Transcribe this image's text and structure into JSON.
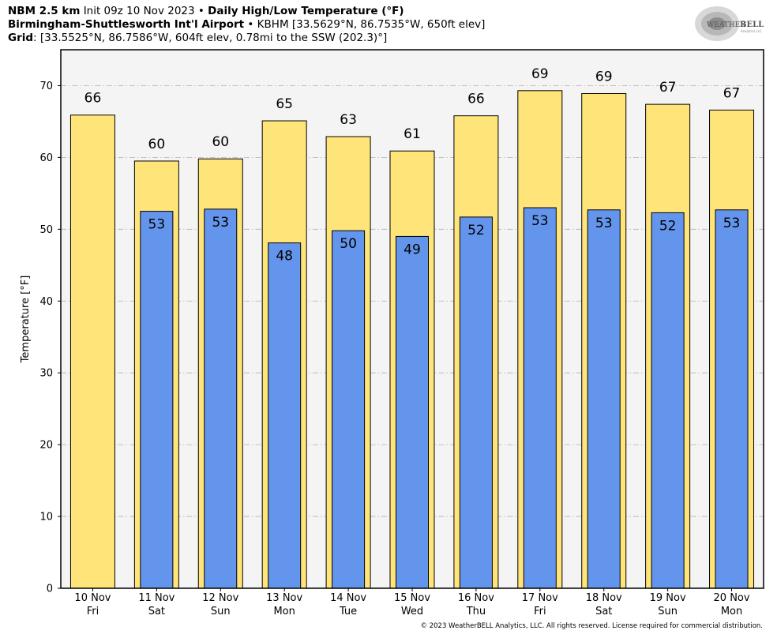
{
  "header": {
    "model": "NBM 2.5 km",
    "init": "Init 09z 10 Nov 2023",
    "product": "Daily High/Low Temperature (°F)",
    "station_name": "Birmingham-Shuttlesworth Int'l Airport",
    "station_info": "KBHM [33.5629°N, 86.7535°W, 650ft elev]",
    "grid_label": "Grid",
    "grid_info": ": [33.5525°N, 86.7586°W, 604ft elev, 0.78mi to the SSW (202.3)°]"
  },
  "logo": {
    "text_a": "WEATHER",
    "text_b": "BELL",
    "text_c": "Analytics LLC"
  },
  "footer": {
    "copyright": "© 2023 WeatherBELL Analytics, LLC. All rights reserved. License required for commercial distribution."
  },
  "chart_data": {
    "type": "bar",
    "title": "Daily High/Low Temperature (°F)",
    "xlabel": "",
    "ylabel": "Temperature [°F]",
    "ylim": [
      0,
      75
    ],
    "yticks": [
      0,
      10,
      20,
      30,
      40,
      50,
      60,
      70
    ],
    "grid": true,
    "categories": [
      [
        "10 Nov",
        "Fri"
      ],
      [
        "11 Nov",
        "Sat"
      ],
      [
        "12 Nov",
        "Sun"
      ],
      [
        "13 Nov",
        "Mon"
      ],
      [
        "14 Nov",
        "Tue"
      ],
      [
        "15 Nov",
        "Wed"
      ],
      [
        "16 Nov",
        "Thu"
      ],
      [
        "17 Nov",
        "Fri"
      ],
      [
        "18 Nov",
        "Sat"
      ],
      [
        "19 Nov",
        "Sun"
      ],
      [
        "20 Nov",
        "Mon"
      ]
    ],
    "series": [
      {
        "name": "",
        "key": "high",
        "color": "#ffe47a",
        "values": [
          65.9,
          59.5,
          59.8,
          65.1,
          62.9,
          60.9,
          65.8,
          69.3,
          68.9,
          67.4,
          66.6
        ],
        "labels": [
          "66",
          "60",
          "60",
          "65",
          "63",
          "61",
          "66",
          "69",
          "69",
          "67",
          "67"
        ]
      },
      {
        "name": "",
        "key": "low",
        "color": "#6495ed",
        "values": [
          null,
          52.5,
          52.8,
          48.1,
          49.8,
          49.0,
          51.7,
          53.0,
          52.7,
          52.3,
          52.7
        ],
        "labels": [
          "",
          "53",
          "53",
          "48",
          "50",
          "49",
          "52",
          "53",
          "53",
          "52",
          "53"
        ]
      }
    ]
  }
}
